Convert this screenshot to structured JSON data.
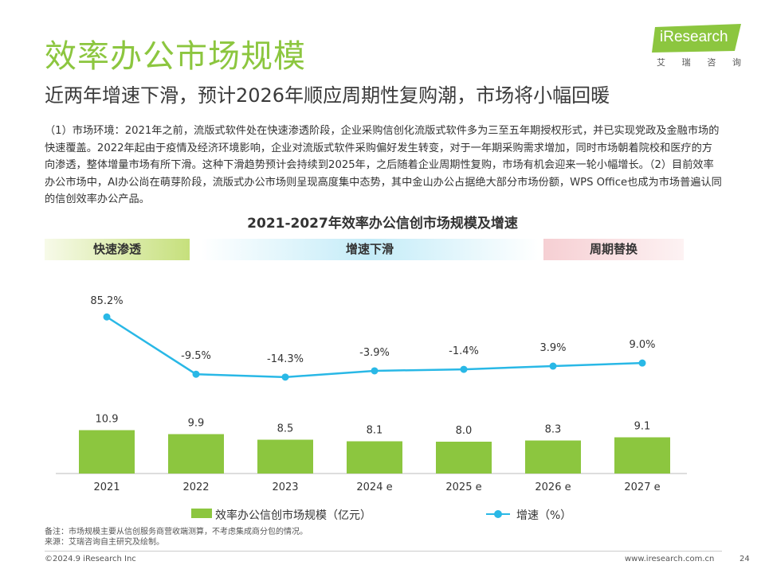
{
  "header": {
    "title": "效率办公市场规模",
    "subtitle": "近两年增速下滑，预计2026年顺应周期性复购潮，市场将小幅回暖"
  },
  "logo": {
    "text": "iResearch",
    "sub": [
      "艾",
      "瑞",
      "咨",
      "询"
    ],
    "color": "#8cc63f"
  },
  "paragraph": "（1）市场环境：2021年之前，流版式软件处在快速渗透阶段，企业采购信创化流版式软件多为三至五年期授权形式，并已实现党政及金融市场的快速覆盖。2022年起由于疫情及经济环境影响，企业对流版式软件采购偏好发生转变，对于一年期采购需求增加，同时市场朝着院校和医疗的方向渗透，整体增量市场有所下滑。这种下滑趋势预计会持续到2025年，之后随着企业周期性复购，市场有机会迎来一轮小幅增长。（2）目前效率办公市场中，AI办公尚在萌芽阶段，流版式办公市场则呈现高度集中态势，其中金山办公占据绝大部分市场份额，WPS Office也成为市场普遍认同的信创效率办公产品。",
  "phases": [
    "快速渗透",
    "增速下滑",
    "周期替换"
  ],
  "chart_data": {
    "type": "bar+line",
    "title": "2021-2027年效率办公信创市场规模及增速",
    "categories": [
      "2021",
      "2022",
      "2023",
      "2024 e",
      "2025 e",
      "2026 e",
      "2027 e"
    ],
    "series": [
      {
        "name": "效率办公信创市场规模（亿元）",
        "type": "bar",
        "values": [
          10.9,
          9.9,
          8.5,
          8.1,
          8.0,
          8.3,
          9.1
        ],
        "labels": [
          "10.9",
          "9.9",
          "8.5",
          "8.1",
          "8.0",
          "8.3",
          "9.1"
        ],
        "color": "#8cc63f"
      },
      {
        "name": "增速（%）",
        "type": "line",
        "values": [
          85.2,
          -9.5,
          -14.3,
          -3.9,
          -1.4,
          3.9,
          9.0
        ],
        "labels": [
          "85.2%",
          "-9.5%",
          "-14.3%",
          "-3.9%",
          "-1.4%",
          "3.9%",
          "9.0%"
        ],
        "color": "#29b8e6"
      }
    ],
    "legend_position": "bottom",
    "grid": false
  },
  "legend": {
    "bar_label": "效率办公信创市场规模（亿元）",
    "line_label": "增速（%）"
  },
  "notes": {
    "note": "备注：市场规模主要从信创服务商营收端测算，不考虑集成商分包的情况。",
    "source": "来源：艾瑞咨询自主研究及绘制。"
  },
  "footer": {
    "copyright": "©2024.9 iResearch Inc",
    "url": "www.iresearch.com.cn",
    "page": "24"
  }
}
